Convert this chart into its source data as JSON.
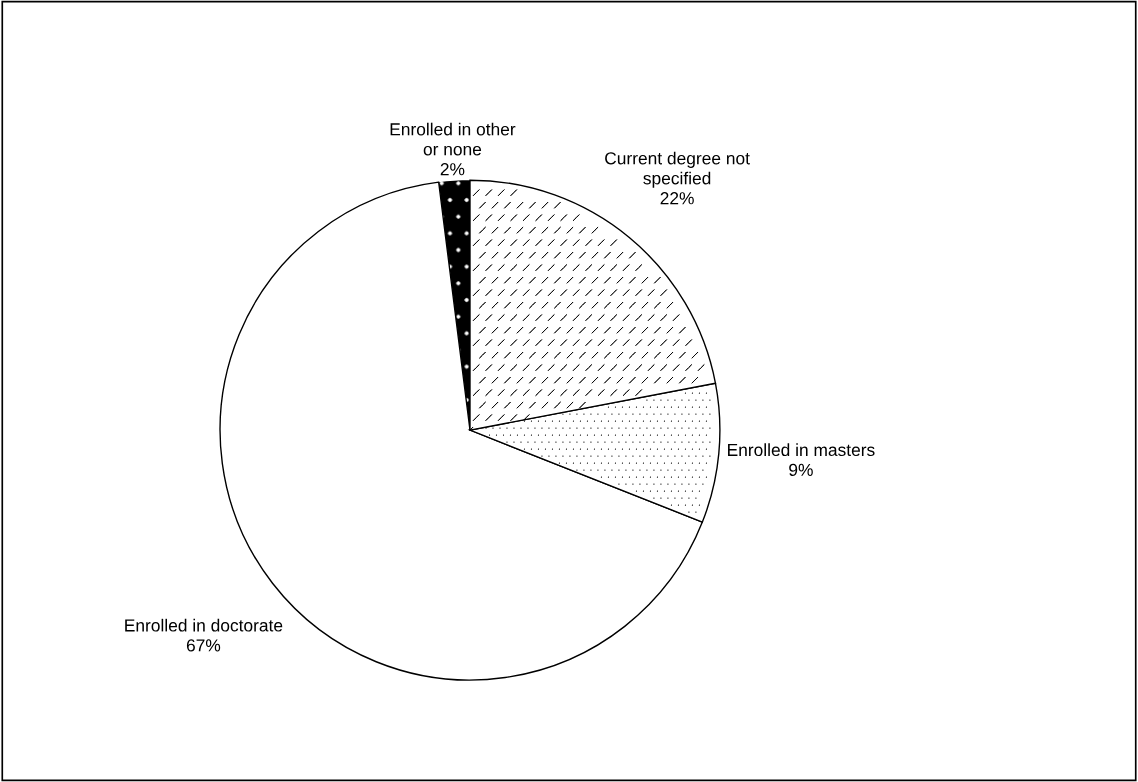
{
  "chart_data": {
    "type": "pie",
    "categories": [
      "Enrolled in other\nor none",
      "Enrolled in doctorate",
      "Enrolled in masters",
      "Current degree not\nspecified"
    ],
    "values": [
      2,
      67,
      9,
      22
    ],
    "colors": [
      "#000000",
      "#ffffff",
      "#ffffff",
      "#ffffff"
    ],
    "value_labels": [
      "2%",
      "67%",
      "9%",
      "22%"
    ]
  }
}
